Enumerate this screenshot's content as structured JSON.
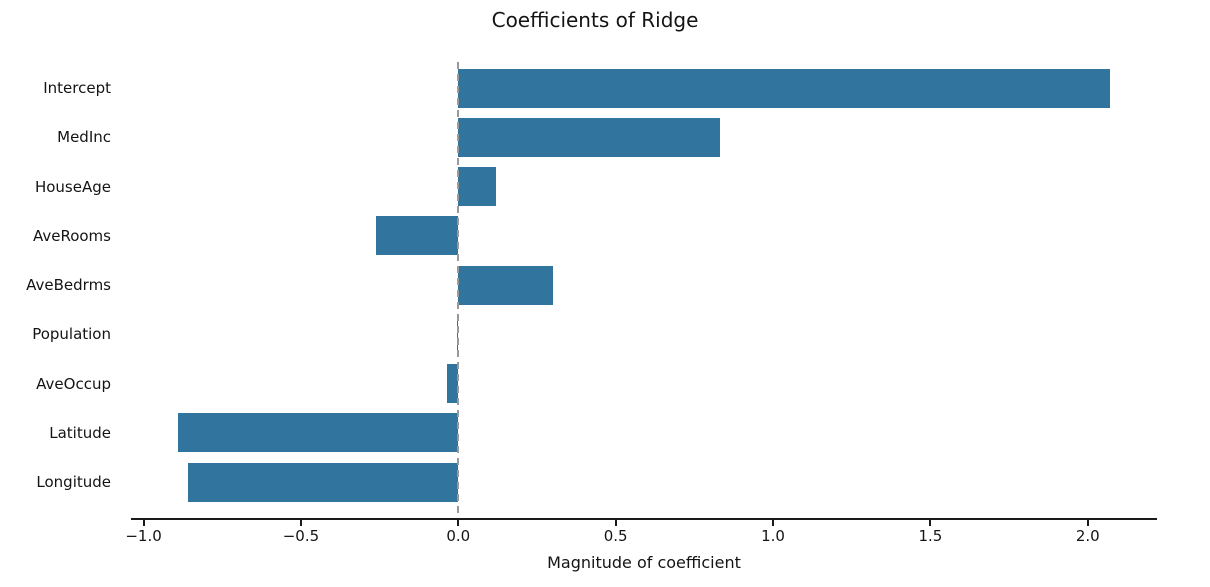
{
  "chart_data": {
    "type": "bar",
    "orientation": "horizontal",
    "title": "Coefficients of Ridge",
    "xlabel": "Magnitude of coefficient",
    "ylabel": "",
    "categories": [
      "Intercept",
      "MedInc",
      "HouseAge",
      "AveRooms",
      "AveBedrms",
      "Population",
      "AveOccup",
      "Latitude",
      "Longitude"
    ],
    "values": [
      2.07,
      0.83,
      0.12,
      -0.26,
      0.3,
      -0.005,
      -0.037,
      -0.89,
      -0.86
    ],
    "xlim": [
      -1.04,
      2.22
    ],
    "xticks": [
      -1.0,
      -0.5,
      0.0,
      0.5,
      1.0,
      1.5,
      2.0
    ],
    "xtick_labels": [
      "−1.0",
      "−0.5",
      "0.0",
      "0.5",
      "1.0",
      "1.5",
      "2.0"
    ],
    "bar_color": "#31749e",
    "zero_line": {
      "x": 0,
      "style": "dashed",
      "color": "#9a9a9a"
    },
    "grid": false,
    "legend": false,
    "background_color": "#ffffff"
  }
}
